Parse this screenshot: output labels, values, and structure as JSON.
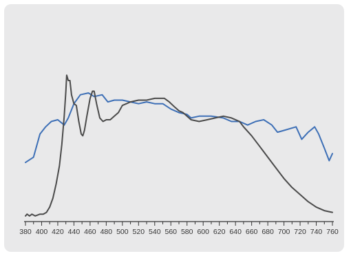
{
  "chart_data": {
    "type": "line",
    "title": "",
    "xlabel": "",
    "ylabel": "",
    "xlim": [
      380,
      760
    ],
    "ylim": [
      0,
      1
    ],
    "grid": false,
    "legend": "none",
    "x_ticks": [
      380,
      400,
      420,
      440,
      460,
      480,
      500,
      520,
      540,
      560,
      580,
      600,
      620,
      640,
      660,
      680,
      700,
      720,
      740,
      760
    ],
    "series": [
      {
        "color": "#3d6fb6",
        "points": [
          [
            380,
            0.32
          ],
          [
            390,
            0.35
          ],
          [
            398,
            0.48
          ],
          [
            405,
            0.52
          ],
          [
            412,
            0.55
          ],
          [
            420,
            0.56
          ],
          [
            428,
            0.53
          ],
          [
            433,
            0.57
          ],
          [
            440,
            0.65
          ],
          [
            448,
            0.7
          ],
          [
            458,
            0.71
          ],
          [
            465,
            0.69
          ],
          [
            475,
            0.7
          ],
          [
            482,
            0.66
          ],
          [
            490,
            0.67
          ],
          [
            500,
            0.67
          ],
          [
            510,
            0.66
          ],
          [
            520,
            0.65
          ],
          [
            530,
            0.66
          ],
          [
            540,
            0.65
          ],
          [
            550,
            0.65
          ],
          [
            560,
            0.62
          ],
          [
            570,
            0.6
          ],
          [
            580,
            0.59
          ],
          [
            585,
            0.57
          ],
          [
            595,
            0.58
          ],
          [
            610,
            0.58
          ],
          [
            625,
            0.57
          ],
          [
            635,
            0.55
          ],
          [
            645,
            0.55
          ],
          [
            655,
            0.53
          ],
          [
            665,
            0.55
          ],
          [
            675,
            0.56
          ],
          [
            685,
            0.53
          ],
          [
            692,
            0.49
          ],
          [
            700,
            0.5
          ],
          [
            715,
            0.52
          ],
          [
            722,
            0.45
          ],
          [
            730,
            0.49
          ],
          [
            738,
            0.52
          ],
          [
            743,
            0.48
          ],
          [
            750,
            0.4
          ],
          [
            756,
            0.33
          ],
          [
            760,
            0.37
          ]
        ]
      },
      {
        "color": "#4a4a4a",
        "points": [
          [
            380,
            0.02
          ],
          [
            382,
            0.03
          ],
          [
            385,
            0.02
          ],
          [
            388,
            0.03
          ],
          [
            392,
            0.02
          ],
          [
            398,
            0.03
          ],
          [
            402,
            0.03
          ],
          [
            406,
            0.04
          ],
          [
            410,
            0.07
          ],
          [
            414,
            0.12
          ],
          [
            418,
            0.2
          ],
          [
            422,
            0.3
          ],
          [
            425,
            0.42
          ],
          [
            428,
            0.58
          ],
          [
            430,
            0.72
          ],
          [
            431,
            0.81
          ],
          [
            433,
            0.78
          ],
          [
            435,
            0.78
          ],
          [
            437,
            0.7
          ],
          [
            440,
            0.65
          ],
          [
            443,
            0.64
          ],
          [
            446,
            0.55
          ],
          [
            449,
            0.48
          ],
          [
            451,
            0.47
          ],
          [
            453,
            0.5
          ],
          [
            456,
            0.58
          ],
          [
            460,
            0.68
          ],
          [
            463,
            0.72
          ],
          [
            465,
            0.72
          ],
          [
            468,
            0.65
          ],
          [
            472,
            0.57
          ],
          [
            476,
            0.55
          ],
          [
            480,
            0.56
          ],
          [
            485,
            0.56
          ],
          [
            490,
            0.58
          ],
          [
            495,
            0.6
          ],
          [
            500,
            0.64
          ],
          [
            505,
            0.65
          ],
          [
            510,
            0.66
          ],
          [
            520,
            0.67
          ],
          [
            530,
            0.67
          ],
          [
            540,
            0.68
          ],
          [
            545,
            0.68
          ],
          [
            552,
            0.68
          ],
          [
            558,
            0.66
          ],
          [
            565,
            0.63
          ],
          [
            570,
            0.61
          ],
          [
            575,
            0.6
          ],
          [
            580,
            0.58
          ],
          [
            585,
            0.56
          ],
          [
            595,
            0.55
          ],
          [
            605,
            0.56
          ],
          [
            615,
            0.57
          ],
          [
            625,
            0.58
          ],
          [
            635,
            0.57
          ],
          [
            645,
            0.55
          ],
          [
            650,
            0.52
          ],
          [
            660,
            0.47
          ],
          [
            670,
            0.41
          ],
          [
            680,
            0.35
          ],
          [
            690,
            0.29
          ],
          [
            700,
            0.23
          ],
          [
            710,
            0.18
          ],
          [
            720,
            0.14
          ],
          [
            730,
            0.1
          ],
          [
            740,
            0.07
          ],
          [
            750,
            0.05
          ],
          [
            760,
            0.04
          ]
        ]
      }
    ]
  }
}
